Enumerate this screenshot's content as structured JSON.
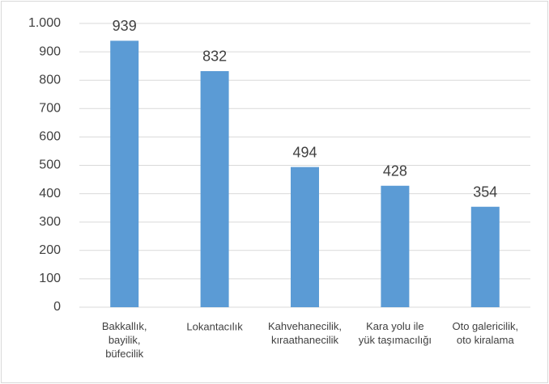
{
  "chart_data": {
    "type": "bar",
    "categories": [
      "Bakkallık,\nbayilik,\nbüfecilik",
      "Lokantacılık",
      "Kahvehanecilik,\nkıraathanecilik",
      "Kara yolu ile\nyük taşımacılığı",
      "Oto galericilik,\noto kiralama"
    ],
    "values": [
      939,
      832,
      494,
      428,
      354
    ],
    "color": "#5b9bd5",
    "ylim": [
      0,
      1000
    ],
    "yticks": [
      0,
      100,
      200,
      300,
      400,
      500,
      600,
      700,
      800,
      900,
      {
        "value": 1000,
        "label": "1.000"
      }
    ],
    "grid": true
  }
}
